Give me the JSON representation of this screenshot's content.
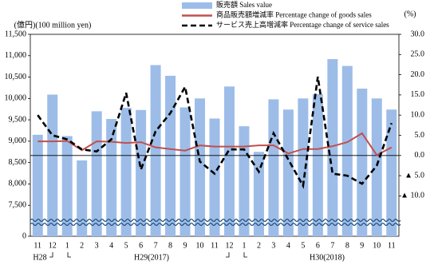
{
  "chart_data": {
    "type": "bar-line",
    "y_label": "(億円)(100 million yen)",
    "y2_label": "(%)",
    "categories": [
      "11",
      "12",
      "1",
      "2",
      "3",
      "4",
      "5",
      "6",
      "7",
      "8",
      "9",
      "10",
      "11",
      "12",
      "1",
      "2",
      "3",
      "4",
      "5",
      "6",
      "7",
      "8",
      "9",
      "10",
      "11"
    ],
    "period_labels": [
      "H28",
      "H29(2017)",
      "H30(2018)"
    ],
    "ylim": [
      0,
      11500
    ],
    "y_break": 7000,
    "yticks": [
      0,
      {
        "value": 7500,
        "label": "7,500"
      },
      {
        "value": 8000,
        "label": "8,000"
      },
      {
        "value": 8500,
        "label": "8,500"
      },
      {
        "value": 9000,
        "label": "9,000"
      },
      {
        "value": 9500,
        "label": "9,500"
      },
      {
        "value": 10000,
        "label": "10,000"
      },
      {
        "value": 10500,
        "label": "10,500"
      },
      {
        "value": 11000,
        "label": "11,000"
      },
      {
        "value": 11500,
        "label": "11,500"
      }
    ],
    "y2lim": [
      -20,
      30
    ],
    "y2ticks": [
      {
        "value": 30,
        "label": "30.0"
      },
      {
        "value": 25,
        "label": "25.0"
      },
      {
        "value": 20,
        "label": "20.0"
      },
      {
        "value": 15,
        "label": "15.0"
      },
      {
        "value": 10,
        "label": "10.0"
      },
      {
        "value": 5,
        "label": "5.0"
      },
      {
        "value": 0,
        "label": "0.0"
      },
      {
        "value": -5,
        "label": "▲ 5.0"
      },
      {
        "value": -10,
        "label": "▲ 10.0"
      }
    ],
    "legend": "top",
    "series": [
      {
        "name": "販売額 Sales value",
        "type": "bar",
        "color": "#9dbde8",
        "values": [
          9150,
          10090,
          9120,
          8550,
          9700,
          9520,
          9780,
          9730,
          10780,
          10530,
          9790,
          10000,
          9530,
          10280,
          9350,
          8750,
          9980,
          9740,
          10000,
          10100,
          10920,
          10760,
          10230,
          10000,
          9740
        ]
      },
      {
        "name": "商品販売額増減率 Percentage change of goods sales",
        "type": "line",
        "axis": "y2",
        "color": "#c0504d",
        "values": [
          3.5,
          3.5,
          3.6,
          1.3,
          3.5,
          3.4,
          3.1,
          3.3,
          2.0,
          1.6,
          1.2,
          2.5,
          2.2,
          2.2,
          2.2,
          2.5,
          2.5,
          0.5,
          1.6,
          1.6,
          2.3,
          3.3,
          5.5,
          0.1,
          2.0
        ]
      },
      {
        "name": "サービス売上高増減率 Percentage change of service sales",
        "type": "line",
        "axis": "y2",
        "color": "#000000",
        "dashed": true,
        "values": [
          10.0,
          5.0,
          4.0,
          1.5,
          1.0,
          4.0,
          15.5,
          -3.5,
          6.0,
          10.5,
          17.0,
          -1.5,
          -4.5,
          1.5,
          1.5,
          -4.0,
          5.5,
          -1.0,
          -7.5,
          19.5,
          -4.5,
          -5.0,
          -7.0,
          -2.5,
          8.0
        ]
      }
    ]
  }
}
